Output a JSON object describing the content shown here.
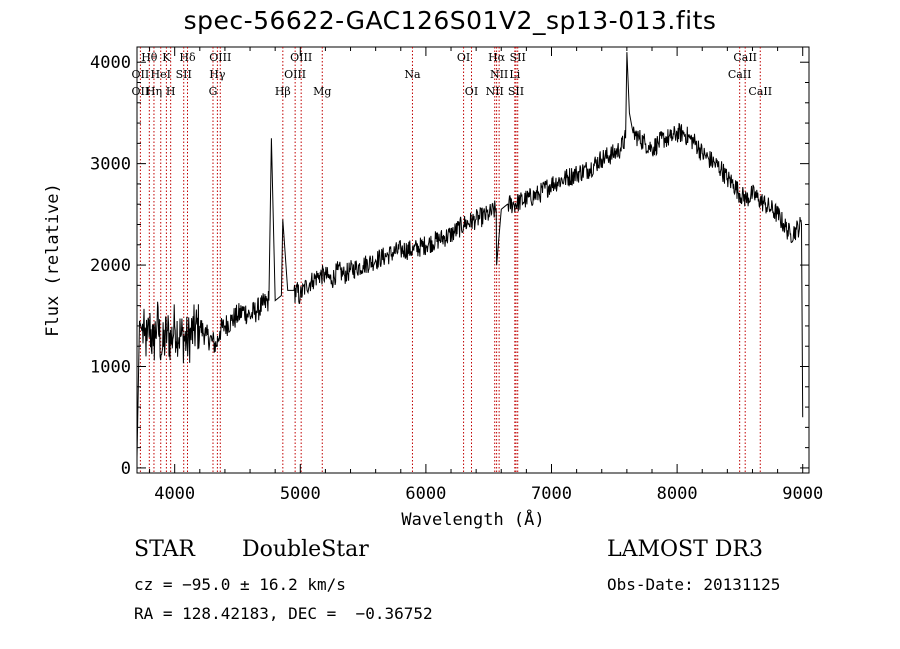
{
  "header": {
    "title": "spec-56622-GAC126S01V2_sp13-013.fits"
  },
  "chart_data": {
    "type": "line",
    "title": "spec-56622-GAC126S01V2_sp13-013.fits",
    "xlabel": "Wavelength (Å)",
    "ylabel": "Flux (relative)",
    "xlim": [
      3700,
      9050
    ],
    "ylim": [
      -50,
      4150
    ],
    "xticks": [
      4000,
      5000,
      6000,
      7000,
      8000,
      9000
    ],
    "yticks": [
      0,
      1000,
      2000,
      3000,
      4000
    ],
    "grid": false,
    "series": [
      {
        "name": "flux",
        "x": [
          3700,
          3720,
          3740,
          3760,
          3780,
          3800,
          3830,
          3860,
          3900,
          3940,
          3970,
          4000,
          4050,
          4100,
          4150,
          4200,
          4250,
          4300,
          4330,
          4360,
          4400,
          4450,
          4500,
          4550,
          4600,
          4650,
          4700,
          4750,
          4770,
          4800,
          4850,
          4861,
          4900,
          4950,
          5000,
          5050,
          5100,
          5150,
          5200,
          5250,
          5300,
          5350,
          5400,
          5500,
          5600,
          5700,
          5800,
          5900,
          6000,
          6100,
          6200,
          6300,
          6400,
          6500,
          6560,
          6563,
          6600,
          6650,
          6700,
          6800,
          6900,
          7000,
          7100,
          7200,
          7300,
          7400,
          7500,
          7550,
          7590,
          7600,
          7620,
          7650,
          7700,
          7750,
          7800,
          7850,
          7900,
          7950,
          8000,
          8050,
          8100,
          8150,
          8200,
          8250,
          8300,
          8350,
          8400,
          8450,
          8500,
          8550,
          8600,
          8650,
          8700,
          8750,
          8800,
          8850,
          8900,
          8950,
          8990,
          9000
        ],
        "y": [
          100,
          1450,
          1350,
          1300,
          1250,
          1400,
          1200,
          1450,
          1150,
          1350,
          1250,
          1400,
          1300,
          1250,
          1350,
          1400,
          1300,
          1250,
          1200,
          1350,
          1400,
          1450,
          1500,
          1550,
          1500,
          1550,
          1600,
          1650,
          3250,
          1650,
          1700,
          2450,
          1750,
          1750,
          1700,
          1800,
          1850,
          1900,
          1900,
          1850,
          1950,
          1900,
          1950,
          2000,
          2050,
          2100,
          2150,
          2150,
          2200,
          2250,
          2300,
          2400,
          2450,
          2500,
          2550,
          2000,
          2550,
          2600,
          2600,
          2650,
          2700,
          2800,
          2850,
          2900,
          2950,
          3050,
          3100,
          3150,
          3250,
          4100,
          3500,
          3300,
          3250,
          3200,
          3150,
          3200,
          3250,
          3250,
          3300,
          3300,
          3250,
          3200,
          3100,
          3050,
          3000,
          2950,
          2850,
          2800,
          2700,
          2650,
          2700,
          2650,
          2600,
          2550,
          2500,
          2400,
          2300,
          2350,
          2400,
          500
        ]
      }
    ],
    "line_labels": [
      {
        "label": "Hθ",
        "x": 3798,
        "row": 1
      },
      {
        "label": "K",
        "x": 3934,
        "row": 1
      },
      {
        "label": "Hδ",
        "x": 4102,
        "row": 1
      },
      {
        "label": "OIII",
        "x": 4363,
        "row": 1
      },
      {
        "label": "OIII",
        "x": 5007,
        "row": 1
      },
      {
        "label": "OI",
        "x": 6300,
        "row": 1
      },
      {
        "label": "Hα",
        "x": 6563,
        "row": 1
      },
      {
        "label": "SII",
        "x": 6731,
        "row": 1
      },
      {
        "label": "CaII",
        "x": 8542,
        "row": 1
      },
      {
        "label": "OII",
        "x": 3727,
        "row": 2
      },
      {
        "label": "HeI",
        "x": 3889,
        "row": 2
      },
      {
        "label": "SII",
        "x": 4072,
        "row": 2
      },
      {
        "label": "Hγ",
        "x": 4340,
        "row": 2
      },
      {
        "label": "OIII",
        "x": 4959,
        "row": 2
      },
      {
        "label": "Na",
        "x": 5893,
        "row": 2
      },
      {
        "label": "NII",
        "x": 6583,
        "row": 2
      },
      {
        "label": "Li",
        "x": 6708,
        "row": 2
      },
      {
        "label": "CaII",
        "x": 8498,
        "row": 2
      },
      {
        "label": "OII",
        "x": 3727,
        "row": 3
      },
      {
        "label": "Hη",
        "x": 3835,
        "row": 3
      },
      {
        "label": "H",
        "x": 3968,
        "row": 3
      },
      {
        "label": "G",
        "x": 4305,
        "row": 3
      },
      {
        "label": "Hβ",
        "x": 4861,
        "row": 3
      },
      {
        "label": "Mg",
        "x": 5175,
        "row": 3
      },
      {
        "label": "OI",
        "x": 6363,
        "row": 3
      },
      {
        "label": "NII",
        "x": 6548,
        "row": 3
      },
      {
        "label": "SII",
        "x": 6717,
        "row": 3
      },
      {
        "label": "CaII",
        "x": 8662,
        "row": 3
      }
    ],
    "line_markers": [
      3727,
      3798,
      3835,
      3889,
      3934,
      3968,
      4072,
      4102,
      4305,
      4340,
      4363,
      4861,
      4959,
      5007,
      5175,
      5893,
      6300,
      6363,
      6548,
      6563,
      6583,
      6708,
      6717,
      6731,
      8498,
      8542,
      8662
    ]
  },
  "info": {
    "object_class": "STAR",
    "subclass": "DoubleStar",
    "survey": "LAMOST DR3",
    "redshift": "cz = −95.0 ± 16.2 km/s",
    "obs_date": "Obs-Date: 20131125",
    "coords": "RA = 128.42183, DEC =  −0.36752"
  },
  "colors": {
    "line": "#000000",
    "marker": "#c00000",
    "background": "#ffffff"
  }
}
